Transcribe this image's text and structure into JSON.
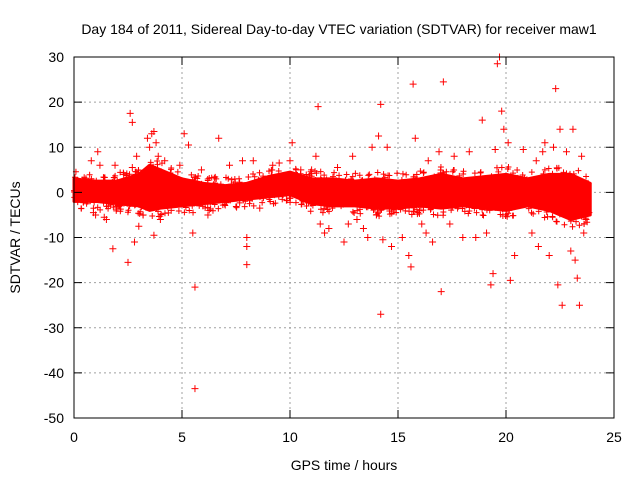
{
  "chart_data": {
    "type": "scatter",
    "title": "Day 184 of 2011, Sidereal Day-to-day VTEC variation (SDTVAR) for receiver maw1",
    "xlabel": "GPS time / hours",
    "ylabel": "SDTVAR / TECUs",
    "xlim": [
      0,
      25
    ],
    "ylim": [
      -50,
      30
    ],
    "xticks": [
      0,
      5,
      10,
      15,
      20,
      25
    ],
    "yticks": [
      -50,
      -40,
      -30,
      -20,
      -10,
      0,
      10,
      20,
      30
    ],
    "grid": true,
    "marker": "+",
    "color": "#ff0000",
    "x_range_of_data": [
      0,
      23.9
    ],
    "dense_band_envelope": {
      "hours": [
        0,
        1,
        2,
        3,
        3.5,
        4,
        5,
        6,
        7,
        8,
        9,
        10,
        11,
        12,
        13,
        14,
        15,
        16,
        17,
        18,
        19,
        20,
        21,
        22,
        23,
        23.9
      ],
      "upper": [
        3,
        2.5,
        2.5,
        4,
        6,
        5,
        3,
        2,
        1.5,
        2,
        3.5,
        4.5,
        3,
        3,
        2.5,
        3,
        2.5,
        3,
        4,
        3,
        3.5,
        4,
        3,
        4,
        4,
        2
      ],
      "lower": [
        -2,
        -2,
        -2.5,
        -3,
        -4,
        -3.5,
        -3,
        -2.5,
        -2,
        -1.5,
        -1,
        -0.5,
        -2.5,
        -3,
        -3,
        -3.5,
        -3.5,
        -3,
        -3.5,
        -3,
        -3.5,
        -4,
        -3,
        -4,
        -6,
        -5
      ]
    },
    "points": [
      [
        0.1,
        2
      ],
      [
        0.3,
        1.5
      ],
      [
        0.5,
        -0.5
      ],
      [
        0.8,
        7
      ],
      [
        0.9,
        -4.5
      ],
      [
        1.0,
        -5
      ],
      [
        1.1,
        9
      ],
      [
        1.2,
        6
      ],
      [
        1.4,
        -5.5
      ],
      [
        1.5,
        -6
      ],
      [
        1.8,
        -12.5
      ],
      [
        1.9,
        6
      ],
      [
        2.1,
        -3
      ],
      [
        2.3,
        4
      ],
      [
        2.5,
        -15.5
      ],
      [
        2.6,
        17.5
      ],
      [
        2.7,
        15.5
      ],
      [
        2.7,
        5.5
      ],
      [
        2.8,
        -11
      ],
      [
        2.9,
        8
      ],
      [
        3.0,
        -7.5
      ],
      [
        3.2,
        -5
      ],
      [
        3.4,
        12
      ],
      [
        3.5,
        10
      ],
      [
        3.6,
        13
      ],
      [
        3.7,
        13.5
      ],
      [
        3.7,
        -9.5
      ],
      [
        3.8,
        11
      ],
      [
        3.9,
        8
      ],
      [
        4.0,
        -6
      ],
      [
        4.2,
        7
      ],
      [
        4.5,
        -4
      ],
      [
        4.9,
        6
      ],
      [
        5.1,
        13
      ],
      [
        5.3,
        10.5
      ],
      [
        5.5,
        -9
      ],
      [
        5.6,
        -21
      ],
      [
        5.6,
        -43.5
      ],
      [
        5.9,
        5
      ],
      [
        6.2,
        -5
      ],
      [
        6.7,
        12
      ],
      [
        7.2,
        6
      ],
      [
        7.8,
        7
      ],
      [
        8.0,
        -10
      ],
      [
        8.0,
        -12
      ],
      [
        8.0,
        -16
      ],
      [
        8.3,
        7
      ],
      [
        8.6,
        -3.5
      ],
      [
        9.2,
        6
      ],
      [
        9.5,
        6.5
      ],
      [
        10.0,
        7
      ],
      [
        10.1,
        11
      ],
      [
        10.5,
        5
      ],
      [
        11.0,
        5
      ],
      [
        11.2,
        8
      ],
      [
        11.3,
        19
      ],
      [
        11.4,
        -7
      ],
      [
        11.6,
        -9
      ],
      [
        11.8,
        -8
      ],
      [
        12.2,
        5.5
      ],
      [
        12.5,
        -11
      ],
      [
        12.7,
        -7
      ],
      [
        12.9,
        8
      ],
      [
        13.1,
        -6
      ],
      [
        13.4,
        -8
      ],
      [
        13.6,
        -10
      ],
      [
        13.8,
        10
      ],
      [
        14.0,
        -5
      ],
      [
        14.1,
        12.5
      ],
      [
        14.2,
        19.5
      ],
      [
        14.2,
        -27
      ],
      [
        14.3,
        -10.5
      ],
      [
        14.5,
        10
      ],
      [
        14.7,
        -12
      ],
      [
        14.9,
        -3
      ],
      [
        15.2,
        -10
      ],
      [
        15.5,
        -14
      ],
      [
        15.6,
        -16.5
      ],
      [
        15.7,
        24
      ],
      [
        15.8,
        12
      ],
      [
        16.1,
        -7
      ],
      [
        16.3,
        -9
      ],
      [
        16.4,
        7
      ],
      [
        16.6,
        -11
      ],
      [
        16.9,
        9
      ],
      [
        17.0,
        -22
      ],
      [
        17.1,
        24.5
      ],
      [
        17.4,
        -7
      ],
      [
        17.6,
        8
      ],
      [
        18.0,
        -10
      ],
      [
        18.3,
        9
      ],
      [
        18.6,
        -10
      ],
      [
        18.9,
        16
      ],
      [
        19.1,
        -9
      ],
      [
        19.3,
        -20.5
      ],
      [
        19.4,
        -18
      ],
      [
        19.5,
        9.5
      ],
      [
        19.6,
        28.5
      ],
      [
        19.7,
        30
      ],
      [
        19.8,
        18
      ],
      [
        19.9,
        14
      ],
      [
        20.1,
        11
      ],
      [
        20.2,
        -19.5
      ],
      [
        20.4,
        -14
      ],
      [
        20.8,
        9.5
      ],
      [
        21.2,
        -9
      ],
      [
        21.4,
        7
      ],
      [
        21.5,
        -12
      ],
      [
        21.7,
        9
      ],
      [
        21.8,
        11
      ],
      [
        22.0,
        -14
      ],
      [
        22.2,
        10
      ],
      [
        22.3,
        23
      ],
      [
        22.4,
        -20.5
      ],
      [
        22.5,
        14
      ],
      [
        22.6,
        -25
      ],
      [
        22.8,
        9
      ],
      [
        23.0,
        -13
      ],
      [
        23.1,
        14
      ],
      [
        23.2,
        -15
      ],
      [
        23.3,
        -19
      ],
      [
        23.4,
        -25
      ],
      [
        23.5,
        8
      ],
      [
        23.6,
        -9
      ],
      [
        23.7,
        -6
      ],
      [
        23.8,
        2
      ]
    ]
  }
}
